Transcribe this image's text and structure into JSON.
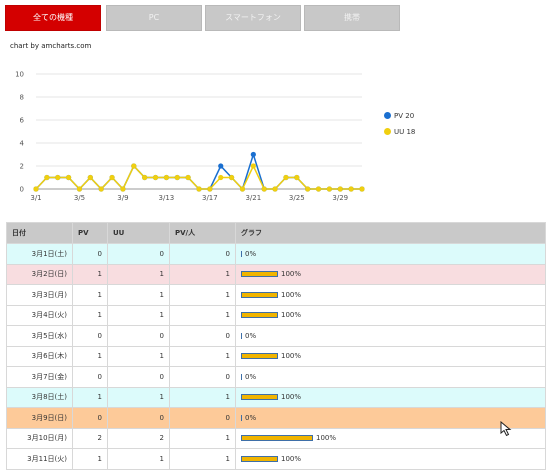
{
  "tabs": [
    {
      "label": "全ての機種",
      "active": true
    },
    {
      "label": "PC",
      "active": false
    },
    {
      "label": "スマートフォン",
      "active": false
    },
    {
      "label": "携帯",
      "active": false
    }
  ],
  "chart_credit": "chart by amcharts.com",
  "chart_data": {
    "type": "line",
    "x": [
      "3/1",
      "3/2",
      "3/3",
      "3/4",
      "3/5",
      "3/6",
      "3/7",
      "3/8",
      "3/9",
      "3/10",
      "3/11",
      "3/12",
      "3/13",
      "3/14",
      "3/15",
      "3/16",
      "3/17",
      "3/18",
      "3/19",
      "3/20",
      "3/21",
      "3/22",
      "3/23",
      "3/24",
      "3/25",
      "3/26",
      "3/27",
      "3/28",
      "3/29",
      "3/30",
      "3/31"
    ],
    "x_tick_labels": [
      "3/1",
      "3/5",
      "3/9",
      "3/13",
      "3/17",
      "3/21",
      "3/25",
      "3/29"
    ],
    "series": [
      {
        "name": "PV 20",
        "color": "#1a6fd0",
        "values": [
          0,
          1,
          1,
          1,
          0,
          1,
          0,
          1,
          0,
          2,
          1,
          1,
          1,
          1,
          1,
          0,
          0,
          2,
          1,
          0,
          3,
          0,
          0,
          1,
          1,
          0,
          0,
          0,
          0,
          0,
          0
        ]
      },
      {
        "name": "UU 18",
        "color": "#f0cf10",
        "values": [
          0,
          1,
          1,
          1,
          0,
          1,
          0,
          1,
          0,
          2,
          1,
          1,
          1,
          1,
          1,
          0,
          0,
          1,
          1,
          0,
          2,
          0,
          0,
          1,
          1,
          0,
          0,
          0,
          0,
          0,
          0
        ]
      }
    ],
    "ylim": [
      0,
      10
    ],
    "y_ticks": [
      0,
      2,
      4,
      6,
      8,
      10
    ],
    "grid": true,
    "legend_position": "right"
  },
  "table": {
    "headers": [
      "日付",
      "PV",
      "UU",
      "PV/人",
      "グラフ"
    ],
    "rows": [
      {
        "date": "3月1日(土)",
        "pv": "0",
        "uu": "0",
        "ppu": "0",
        "pct": "0%",
        "ratio": 0,
        "type": "sat"
      },
      {
        "date": "3月2日(日)",
        "pv": "1",
        "uu": "1",
        "ppu": "1",
        "pct": "100%",
        "ratio": 1,
        "type": "sun"
      },
      {
        "date": "3月3日(月)",
        "pv": "1",
        "uu": "1",
        "ppu": "1",
        "pct": "100%",
        "ratio": 1,
        "type": "week"
      },
      {
        "date": "3月4日(火)",
        "pv": "1",
        "uu": "1",
        "ppu": "1",
        "pct": "100%",
        "ratio": 1,
        "type": "week"
      },
      {
        "date": "3月5日(水)",
        "pv": "0",
        "uu": "0",
        "ppu": "0",
        "pct": "0%",
        "ratio": 0,
        "type": "week"
      },
      {
        "date": "3月6日(木)",
        "pv": "1",
        "uu": "1",
        "ppu": "1",
        "pct": "100%",
        "ratio": 1,
        "type": "week"
      },
      {
        "date": "3月7日(金)",
        "pv": "0",
        "uu": "0",
        "ppu": "0",
        "pct": "0%",
        "ratio": 0,
        "type": "week"
      },
      {
        "date": "3月8日(土)",
        "pv": "1",
        "uu": "1",
        "ppu": "1",
        "pct": "100%",
        "ratio": 1,
        "type": "sat"
      },
      {
        "date": "3月9日(日)",
        "pv": "0",
        "uu": "0",
        "ppu": "0",
        "pct": "0%",
        "ratio": 0,
        "type": "hol"
      },
      {
        "date": "3月10日(月)",
        "pv": "2",
        "uu": "2",
        "ppu": "1",
        "pct": "100%",
        "ratio": 2,
        "type": "week"
      },
      {
        "date": "3月11日(火)",
        "pv": "1",
        "uu": "1",
        "ppu": "1",
        "pct": "100%",
        "ratio": 1,
        "type": "week"
      }
    ]
  }
}
